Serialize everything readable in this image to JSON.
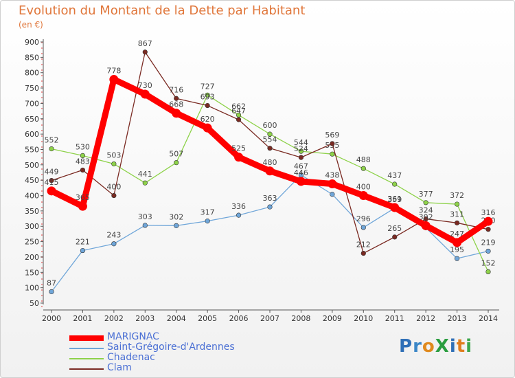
{
  "title": "Evolution du Montant de la Dette par Habitant",
  "unit": "(en €)",
  "logo": {
    "text": "ProXiti",
    "letters": [
      {
        "ch": "P",
        "color": "#2f6fb7"
      },
      {
        "ch": "r",
        "color": "#3a86c7"
      },
      {
        "ch": "o",
        "color": "#e08a1e"
      },
      {
        "ch": "X",
        "color": "#2a9d3f"
      },
      {
        "ch": "i",
        "color": "#2f6fb7"
      },
      {
        "ch": "t",
        "color": "#e07d1e"
      },
      {
        "ch": "i",
        "color": "#3aa64b"
      }
    ]
  },
  "chart_data": {
    "type": "line",
    "x": [
      2000,
      2001,
      2002,
      2003,
      2004,
      2005,
      2006,
      2007,
      2008,
      2009,
      2010,
      2011,
      2012,
      2013,
      2014
    ],
    "ylim": [
      50,
      900
    ],
    "yticks": [
      50,
      100,
      150,
      200,
      250,
      300,
      350,
      400,
      450,
      500,
      550,
      600,
      650,
      700,
      750,
      800,
      850,
      900
    ],
    "grid": false,
    "legend": "bottom-left",
    "series": [
      {
        "name": "Saint-Grégoire-d'Ardennes",
        "color": "#6fa6d9",
        "values": [
          87,
          221,
          243,
          303,
          302,
          317,
          336,
          363,
          467,
          404,
          296,
          359,
          295,
          195,
          219
        ],
        "labels": [
          "87",
          "221",
          "243",
          "303",
          "302",
          "317",
          "336",
          "363",
          "467",
          "",
          "296",
          "359",
          "",
          "195",
          "219"
        ]
      },
      {
        "name": "Chadenac",
        "color": "#8ed24a",
        "values": [
          552,
          530,
          503,
          441,
          507,
          727,
          662,
          600,
          544,
          535,
          488,
          437,
          377,
          372,
          152
        ],
        "labels": [
          "552",
          "530",
          "503",
          "441",
          "507",
          "727",
          "662",
          "600",
          "544",
          "535",
          "488",
          "437",
          "377",
          "372",
          "152"
        ]
      },
      {
        "name": "Clam",
        "color": "#7a2a22",
        "values": [
          449,
          483,
          400,
          867,
          716,
          693,
          647,
          554,
          524,
          569,
          212,
          265,
          324,
          311,
          290
        ],
        "labels": [
          "449",
          "483",
          "400",
          "867",
          "716",
          "693",
          "647",
          "554",
          "524",
          "569",
          "212",
          "265",
          "324",
          "311",
          "290"
        ]
      },
      {
        "name": "MARIGNAC",
        "color": "#ff0000",
        "values": [
          415,
          365,
          778,
          730,
          668,
          620,
          525,
          480,
          446,
          438,
          400,
          361,
          302,
          247,
          316
        ],
        "labels": [
          "415",
          "365",
          "778",
          "730",
          "668",
          "620",
          "525",
          "480",
          "446",
          "438",
          "400",
          "361",
          "302",
          "247",
          "316"
        ]
      }
    ]
  },
  "legend_order": [
    3,
    0,
    1,
    2
  ]
}
